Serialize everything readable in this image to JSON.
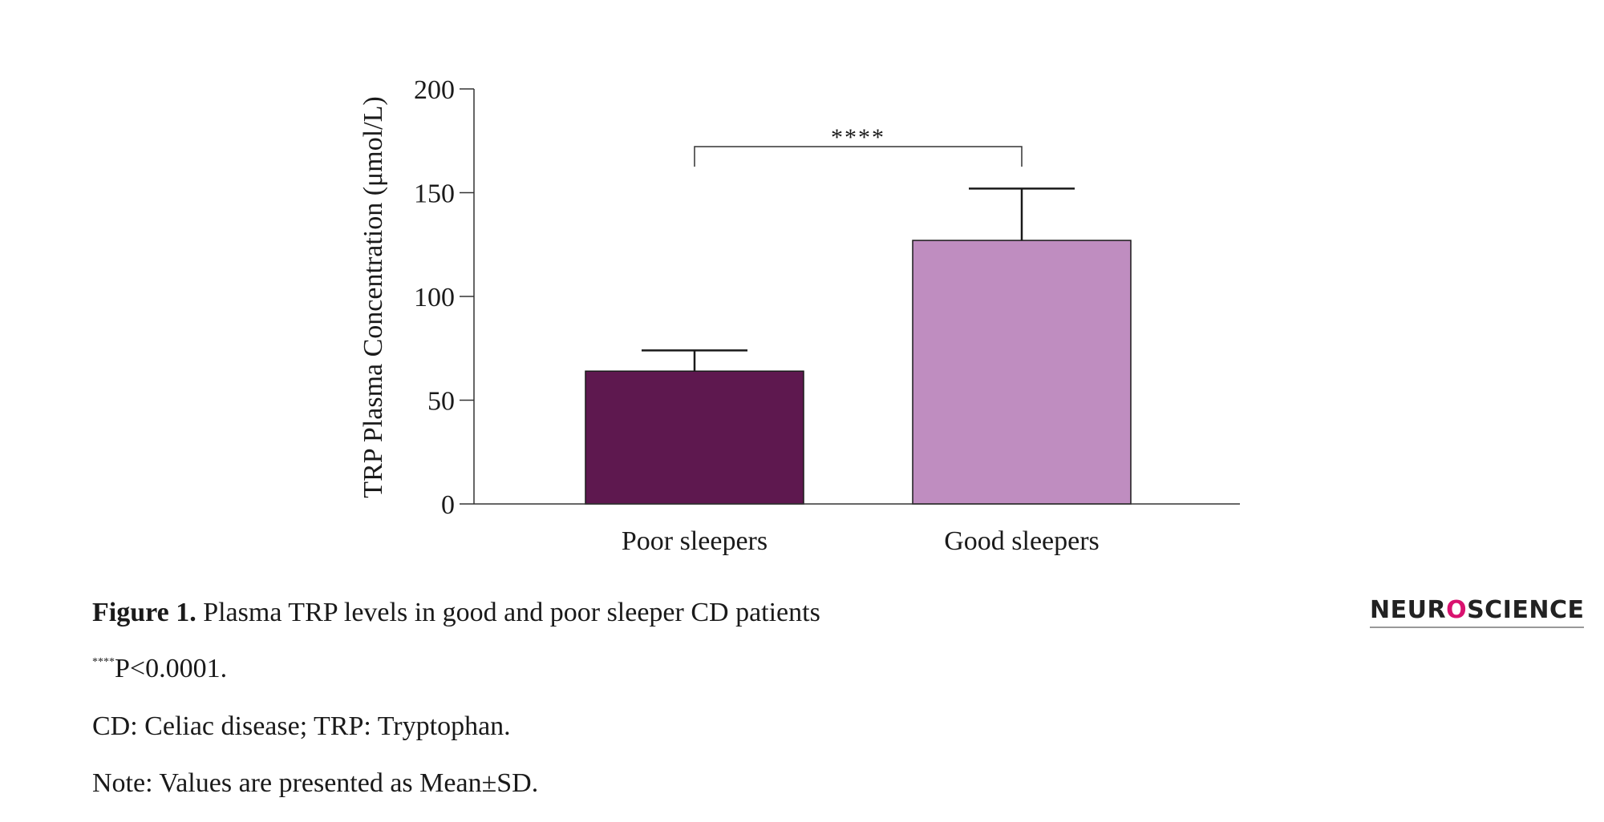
{
  "chart_data": {
    "type": "bar",
    "ylabel": "TRP Plasma Concentration (μmol/L)",
    "xlabel": "",
    "ylim": [
      0,
      200
    ],
    "yticks": [
      0,
      50,
      100,
      150,
      200
    ],
    "categories": [
      "Poor sleepers",
      "Good sleepers"
    ],
    "values": [
      64,
      127
    ],
    "errors": [
      10,
      25
    ],
    "colors": [
      "#5e184f",
      "#bf8dc0"
    ],
    "significance": {
      "from": 0,
      "to": 1,
      "label": "****"
    }
  },
  "caption": {
    "figure_label": "Figure 1.",
    "figure_text": "Plasma TRP levels in good and poor sleeper CD patients",
    "sig_stars": "****",
    "sig_text": "P<0.0001.",
    "abbreviations": "CD: Celiac disease; TRP: Tryptophan.",
    "note": "Note: Values are presented as Mean±SD."
  },
  "logo": {
    "left": "NEUR",
    "middle": "O",
    "right": "SCIENCE"
  }
}
